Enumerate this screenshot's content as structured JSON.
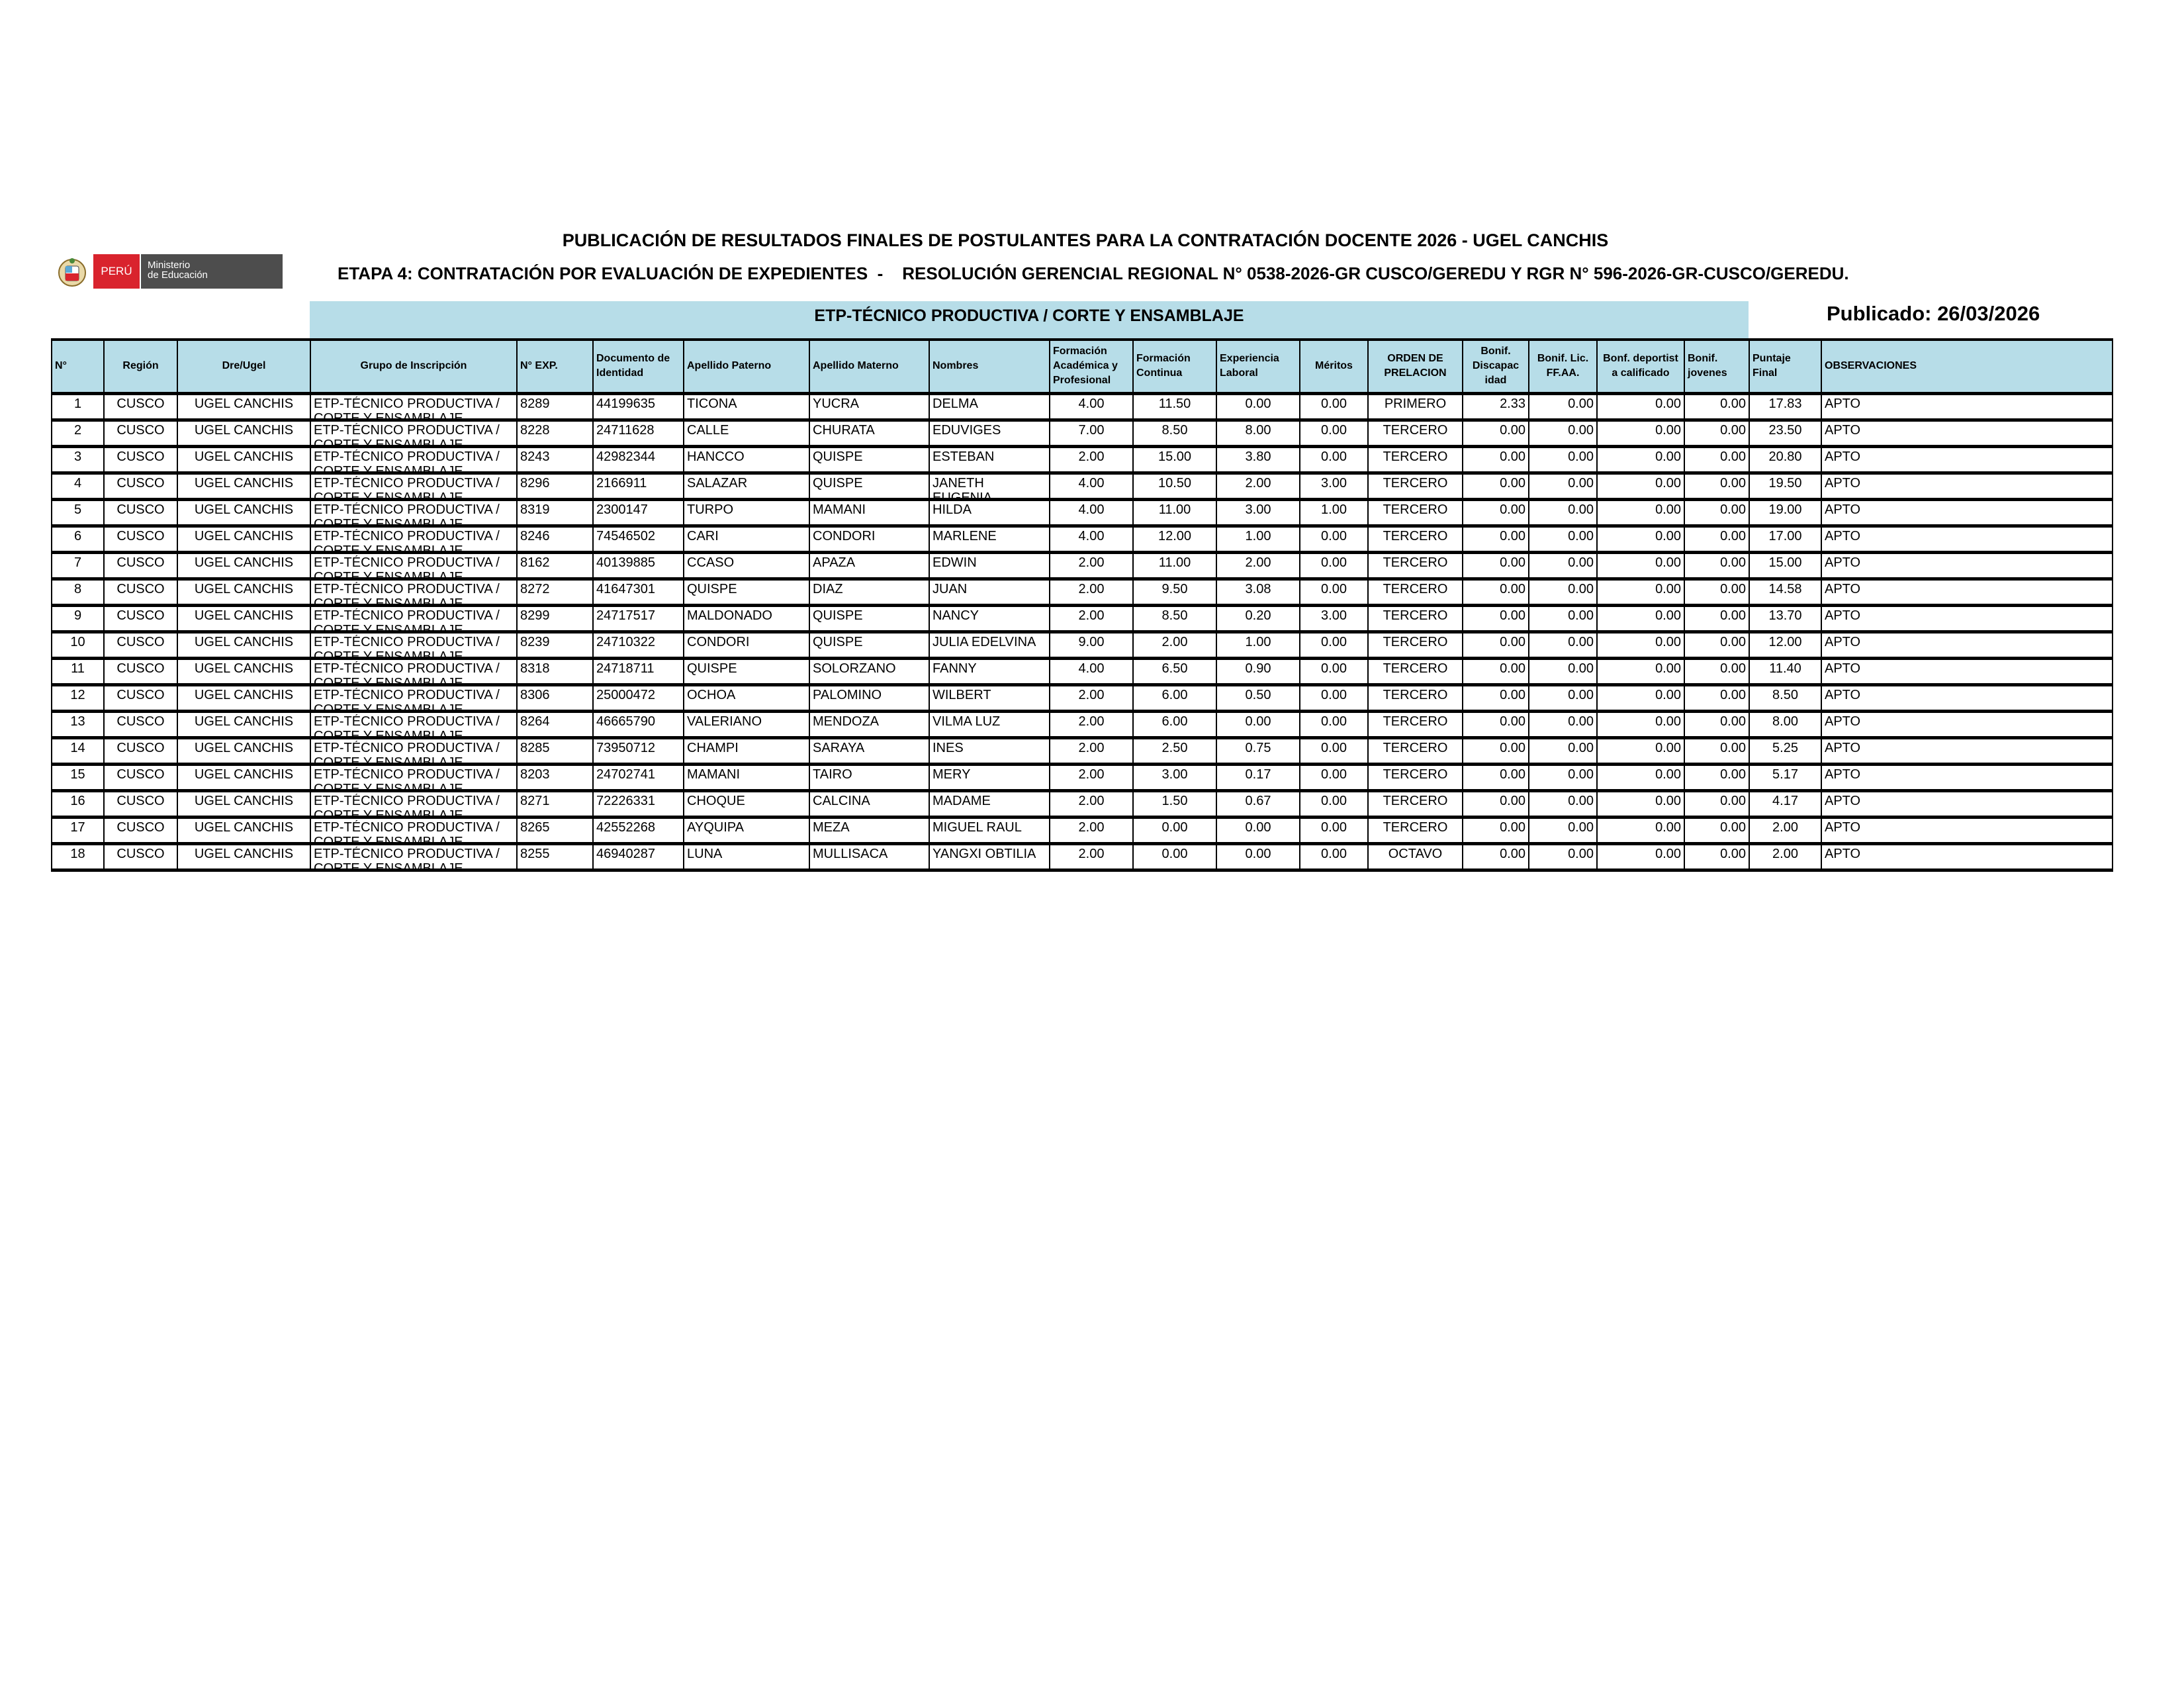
{
  "header": {
    "title": "PUBLICACIÓN DE RESULTADOS FINALES DE POSTULANTES PARA LA CONTRATACIÓN DOCENTE 2026 - UGEL CANCHIS",
    "subtitle": "ETAPA 4: CONTRATACIÓN POR EVALUACIÓN DE EXPEDIENTES  -    RESOLUCIÓN GERENCIAL REGIONAL N° 0538-2026-GR CUSCO/GEREDU Y RGR N° 596-2026-GR-CUSCO/GEREDU.",
    "logo": {
      "country": "PERÚ",
      "ministry_line1": "Ministerio",
      "ministry_line2": "de Educación"
    },
    "banner": "ETP-TÉCNICO PRODUCTIVA / CORTE Y ENSAMBLAJE",
    "published": "Publicado: 26/03/2026"
  },
  "colors": {
    "header_bg": "#b7dde8",
    "peru_red": "#d9232d",
    "ministry_gray": "#4d4d4d"
  },
  "table": {
    "columns": [
      "N°",
      "Región",
      "Dre/Ugel",
      "Grupo de Inscripción",
      "N° EXP.",
      "Documento de Identidad",
      "Apellido Paterno",
      "Apellido Materno",
      "Nombres",
      "Formación Académica y Profesional",
      "Formación Continua",
      "Experiencia Laboral",
      "Méritos",
      "ORDEN DE PRELACION",
      "Bonif. Discapac idad",
      "Bonif. Lic. FF.AA.",
      "Bonf. deportist a calificado",
      "Bonif. jovenes",
      "Puntaje Final",
      "OBSERVACIONES"
    ],
    "rows": [
      [
        "1",
        "CUSCO",
        "UGEL CANCHIS",
        "ETP-TÉCNICO PRODUCTIVA / CORTE Y ENSAMBLAJE",
        "8289",
        "44199635",
        "TICONA",
        "YUCRA",
        "DELMA",
        "4.00",
        "11.50",
        "0.00",
        "0.00",
        "PRIMERO",
        "2.33",
        "0.00",
        "0.00",
        "0.00",
        "17.83",
        "APTO"
      ],
      [
        "2",
        "CUSCO",
        "UGEL CANCHIS",
        "ETP-TÉCNICO PRODUCTIVA / CORTE Y ENSAMBLAJE",
        "8228",
        "24711628",
        "CALLE",
        "CHURATA",
        "EDUVIGES",
        "7.00",
        "8.50",
        "8.00",
        "0.00",
        "TERCERO",
        "0.00",
        "0.00",
        "0.00",
        "0.00",
        "23.50",
        "APTO"
      ],
      [
        "3",
        "CUSCO",
        "UGEL CANCHIS",
        "ETP-TÉCNICO PRODUCTIVA / CORTE Y ENSAMBLAJE",
        "8243",
        "42982344",
        "HANCCO",
        "QUISPE",
        "ESTEBAN",
        "2.00",
        "15.00",
        "3.80",
        "0.00",
        "TERCERO",
        "0.00",
        "0.00",
        "0.00",
        "0.00",
        "20.80",
        "APTO"
      ],
      [
        "4",
        "CUSCO",
        "UGEL CANCHIS",
        "ETP-TÉCNICO PRODUCTIVA / CORTE Y ENSAMBLAJE",
        "8296",
        "2166911",
        "SALAZAR",
        "QUISPE",
        "JANETH EUGENIA",
        "4.00",
        "10.50",
        "2.00",
        "3.00",
        "TERCERO",
        "0.00",
        "0.00",
        "0.00",
        "0.00",
        "19.50",
        "APTO"
      ],
      [
        "5",
        "CUSCO",
        "UGEL CANCHIS",
        "ETP-TÉCNICO PRODUCTIVA / CORTE Y ENSAMBLAJE",
        "8319",
        "2300147",
        "TURPO",
        "MAMANI",
        "HILDA",
        "4.00",
        "11.00",
        "3.00",
        "1.00",
        "TERCERO",
        "0.00",
        "0.00",
        "0.00",
        "0.00",
        "19.00",
        "APTO"
      ],
      [
        "6",
        "CUSCO",
        "UGEL CANCHIS",
        "ETP-TÉCNICO PRODUCTIVA / CORTE Y ENSAMBLAJE",
        "8246",
        "74546502",
        "CARI",
        "CONDORI",
        "MARLENE",
        "4.00",
        "12.00",
        "1.00",
        "0.00",
        "TERCERO",
        "0.00",
        "0.00",
        "0.00",
        "0.00",
        "17.00",
        "APTO"
      ],
      [
        "7",
        "CUSCO",
        "UGEL CANCHIS",
        "ETP-TÉCNICO PRODUCTIVA / CORTE Y ENSAMBLAJE",
        "8162",
        "40139885",
        "CCASO",
        "APAZA",
        "EDWIN",
        "2.00",
        "11.00",
        "2.00",
        "0.00",
        "TERCERO",
        "0.00",
        "0.00",
        "0.00",
        "0.00",
        "15.00",
        "APTO"
      ],
      [
        "8",
        "CUSCO",
        "UGEL CANCHIS",
        "ETP-TÉCNICO PRODUCTIVA / CORTE Y ENSAMBLAJE",
        "8272",
        "41647301",
        "QUISPE",
        "DIAZ",
        "JUAN",
        "2.00",
        "9.50",
        "3.08",
        "0.00",
        "TERCERO",
        "0.00",
        "0.00",
        "0.00",
        "0.00",
        "14.58",
        "APTO"
      ],
      [
        "9",
        "CUSCO",
        "UGEL CANCHIS",
        "ETP-TÉCNICO PRODUCTIVA / CORTE Y ENSAMBLAJE",
        "8299",
        "24717517",
        "MALDONADO",
        "QUISPE",
        "NANCY",
        "2.00",
        "8.50",
        "0.20",
        "3.00",
        "TERCERO",
        "0.00",
        "0.00",
        "0.00",
        "0.00",
        "13.70",
        "APTO"
      ],
      [
        "10",
        "CUSCO",
        "UGEL CANCHIS",
        "ETP-TÉCNICO PRODUCTIVA / CORTE Y ENSAMBLAJE",
        "8239",
        "24710322",
        "CONDORI",
        "QUISPE",
        "JULIA EDELVINA",
        "9.00",
        "2.00",
        "1.00",
        "0.00",
        "TERCERO",
        "0.00",
        "0.00",
        "0.00",
        "0.00",
        "12.00",
        "APTO"
      ],
      [
        "11",
        "CUSCO",
        "UGEL CANCHIS",
        "ETP-TÉCNICO PRODUCTIVA / CORTE Y ENSAMBLAJE",
        "8318",
        "24718711",
        "QUISPE",
        "SOLORZANO",
        "FANNY",
        "4.00",
        "6.50",
        "0.90",
        "0.00",
        "TERCERO",
        "0.00",
        "0.00",
        "0.00",
        "0.00",
        "11.40",
        "APTO"
      ],
      [
        "12",
        "CUSCO",
        "UGEL CANCHIS",
        "ETP-TÉCNICO PRODUCTIVA / CORTE Y ENSAMBLAJE",
        "8306",
        "25000472",
        "OCHOA",
        "PALOMINO",
        "WILBERT",
        "2.00",
        "6.00",
        "0.50",
        "0.00",
        "TERCERO",
        "0.00",
        "0.00",
        "0.00",
        "0.00",
        "8.50",
        "APTO"
      ],
      [
        "13",
        "CUSCO",
        "UGEL CANCHIS",
        "ETP-TÉCNICO PRODUCTIVA / CORTE Y ENSAMBLAJE",
        "8264",
        "46665790",
        "VALERIANO",
        "MENDOZA",
        "VILMA LUZ",
        "2.00",
        "6.00",
        "0.00",
        "0.00",
        "TERCERO",
        "0.00",
        "0.00",
        "0.00",
        "0.00",
        "8.00",
        "APTO"
      ],
      [
        "14",
        "CUSCO",
        "UGEL CANCHIS",
        "ETP-TÉCNICO PRODUCTIVA / CORTE Y ENSAMBLAJE",
        "8285",
        "73950712",
        "CHAMPI",
        "SARAYA",
        "INES",
        "2.00",
        "2.50",
        "0.75",
        "0.00",
        "TERCERO",
        "0.00",
        "0.00",
        "0.00",
        "0.00",
        "5.25",
        "APTO"
      ],
      [
        "15",
        "CUSCO",
        "UGEL CANCHIS",
        "ETP-TÉCNICO PRODUCTIVA / CORTE Y ENSAMBLAJE",
        "8203",
        "24702741",
        "MAMANI",
        "TAIRO",
        "MERY",
        "2.00",
        "3.00",
        "0.17",
        "0.00",
        "TERCERO",
        "0.00",
        "0.00",
        "0.00",
        "0.00",
        "5.17",
        "APTO"
      ],
      [
        "16",
        "CUSCO",
        "UGEL CANCHIS",
        "ETP-TÉCNICO PRODUCTIVA / CORTE Y ENSAMBLAJE",
        "8271",
        "72226331",
        "CHOQUE",
        "CALCINA",
        "MADAME",
        "2.00",
        "1.50",
        "0.67",
        "0.00",
        "TERCERO",
        "0.00",
        "0.00",
        "0.00",
        "0.00",
        "4.17",
        "APTO"
      ],
      [
        "17",
        "CUSCO",
        "UGEL CANCHIS",
        "ETP-TÉCNICO PRODUCTIVA / CORTE Y ENSAMBLAJE",
        "8265",
        "42552268",
        "AYQUIPA",
        "MEZA",
        "MIGUEL RAUL",
        "2.00",
        "0.00",
        "0.00",
        "0.00",
        "TERCERO",
        "0.00",
        "0.00",
        "0.00",
        "0.00",
        "2.00",
        "APTO"
      ],
      [
        "18",
        "CUSCO",
        "UGEL CANCHIS",
        "ETP-TÉCNICO PRODUCTIVA / CORTE Y ENSAMBLAJE",
        "8255",
        "46940287",
        "LUNA",
        "MULLISACA",
        "YANGXI OBTILIA",
        "2.00",
        "0.00",
        "0.00",
        "0.00",
        "OCTAVO",
        "0.00",
        "0.00",
        "0.00",
        "0.00",
        "2.00",
        "APTO"
      ]
    ]
  }
}
